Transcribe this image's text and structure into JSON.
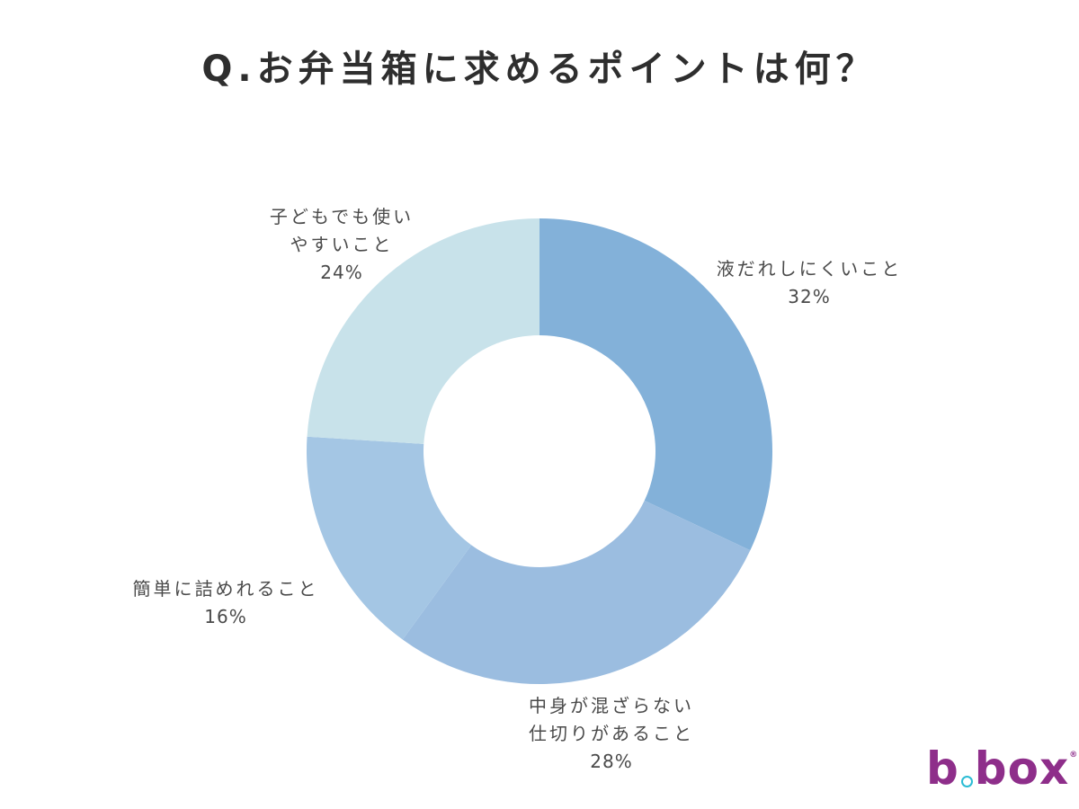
{
  "title": "Q.お弁当箱に求めるポイントは何？",
  "chart_data": {
    "type": "pie",
    "subtype": "donut",
    "title": "Q.お弁当箱に求めるポイントは何？",
    "start_angle": "12 o'clock, clockwise",
    "categories": [
      "液だれしにくいこと",
      "中身が混ざらない仕切りがあること",
      "簡単に詰めれること",
      "子どもでも使いやすいこと"
    ],
    "values": [
      32,
      28,
      16,
      24
    ],
    "unit": "%",
    "colors": [
      "#83b1d9",
      "#9bbde0",
      "#a4c6e4",
      "#c8e2ea"
    ],
    "legend": "none (direct labels)"
  },
  "labels": [
    {
      "line1": "液だれしにくいこと",
      "line2": "",
      "pct": "32%"
    },
    {
      "line1": "中身が混ざらない",
      "line2": "仕切りがあること",
      "pct": "28%"
    },
    {
      "line1": "簡単に詰めれること",
      "line2": "",
      "pct": "16%"
    },
    {
      "line1": "子どもでも使い",
      "line2": "やすいこと",
      "pct": "24%"
    }
  ],
  "logo": {
    "text_left": "b",
    "text_right": "box",
    "reg": "®"
  }
}
